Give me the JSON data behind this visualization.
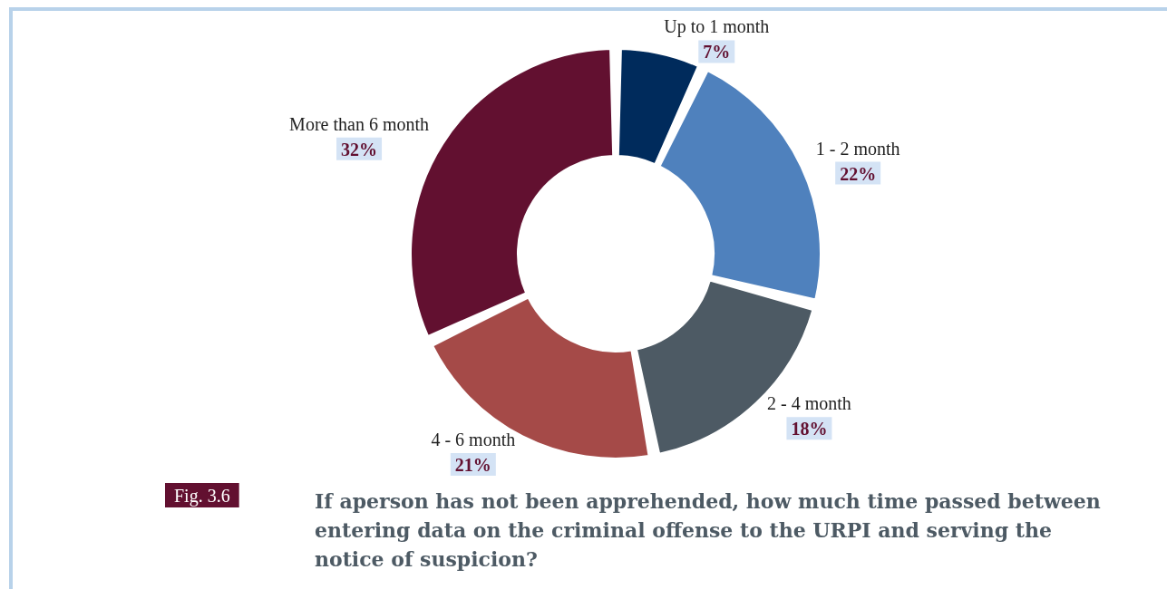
{
  "chart_data": {
    "type": "donut",
    "title": "If aperson has not been apprehended, how much time passed between\nentering data on the criminal offense to the URPI and serving the\nnotice of suspicion?",
    "categories": [
      "Up to 1 month",
      "1 - 2 month",
      "2 - 4 month",
      "4 - 6 month",
      "More than 6 month"
    ],
    "values": [
      7,
      22,
      18,
      21,
      32
    ],
    "value_labels": [
      "7%",
      "22%",
      "18%",
      "21%",
      "32%"
    ],
    "colors": [
      "#002b5c",
      "#4f81bd",
      "#4d5a64",
      "#a54a48",
      "#621030"
    ],
    "annotations": [
      "Fig. 3.6"
    ],
    "legend": false
  }
}
